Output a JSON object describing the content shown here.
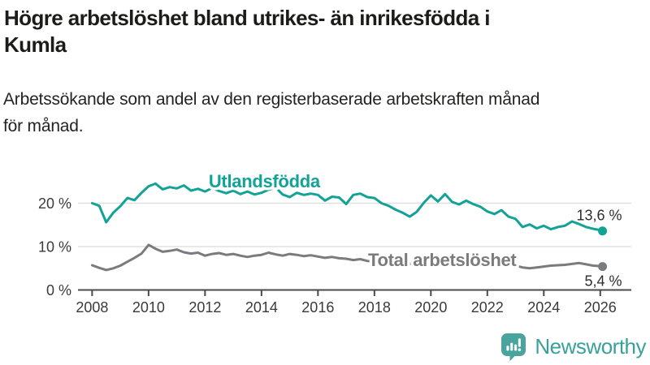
{
  "header": {
    "title_lines": [
      "Högre arbetslöshet bland utrikes- än inrikesfödda i",
      "Kumla"
    ],
    "subtitle_lines": [
      "Arbetssökande som andel av den registerbaserade arbetskraften månad",
      "för månad."
    ]
  },
  "chart_data": {
    "type": "line",
    "x_unit": "year (monthly share of registered labour force, sampled quarterly)",
    "x": [
      2008,
      2008.25,
      2008.5,
      2008.75,
      2009,
      2009.25,
      2009.5,
      2009.75,
      2010,
      2010.25,
      2010.5,
      2010.75,
      2011,
      2011.25,
      2011.5,
      2011.75,
      2012,
      2012.25,
      2012.5,
      2012.75,
      2013,
      2013.25,
      2013.5,
      2013.75,
      2014,
      2014.25,
      2014.5,
      2014.75,
      2015,
      2015.25,
      2015.5,
      2015.75,
      2016,
      2016.25,
      2016.5,
      2016.75,
      2017,
      2017.25,
      2017.5,
      2017.75,
      2018,
      2018.25,
      2018.5,
      2018.75,
      2019,
      2019.25,
      2019.5,
      2019.75,
      2020,
      2020.25,
      2020.5,
      2020.75,
      2021,
      2021.25,
      2021.5,
      2021.75,
      2022,
      2022.25,
      2022.5,
      2022.75,
      2023,
      2023.25,
      2023.5,
      2023.75,
      2024,
      2024.25,
      2024.5,
      2024.75,
      2025,
      2025.25,
      2025.5,
      2025.75,
      2026,
      2026.08
    ],
    "series": [
      {
        "name": "Utlandsfödda",
        "color": "#12a296",
        "end_label": "13,6 %",
        "end_value": 13.6,
        "label_at": {
          "x": 2014.1,
          "y": 23.6
        },
        "values": [
          20.0,
          19.4,
          15.6,
          17.8,
          19.3,
          21.2,
          20.7,
          22.4,
          23.9,
          24.5,
          23.2,
          23.7,
          23.4,
          24.1,
          22.9,
          23.3,
          22.7,
          23.5,
          22.8,
          22.3,
          22.9,
          22.1,
          22.7,
          22.0,
          22.4,
          23.1,
          23.6,
          22.0,
          21.4,
          22.4,
          21.9,
          22.2,
          21.9,
          20.6,
          21.5,
          21.3,
          19.8,
          21.9,
          22.2,
          21.4,
          21.2,
          20.0,
          19.4,
          18.5,
          17.8,
          16.9,
          18.0,
          20.1,
          21.8,
          20.4,
          22.1,
          20.3,
          19.7,
          20.6,
          19.8,
          19.2,
          18.1,
          17.5,
          18.4,
          16.9,
          16.4,
          14.5,
          15.1,
          14.2,
          14.8,
          14.0,
          14.5,
          14.8,
          15.8,
          15.2,
          14.5,
          14.1,
          13.8,
          13.6
        ]
      },
      {
        "name": "Total arbetslöshet",
        "color": "#7a7b7e",
        "end_label": "5,4 %",
        "end_value": 5.4,
        "label_at": {
          "x": 2020.4,
          "y": 5.5
        },
        "values": [
          5.7,
          5.1,
          4.6,
          5.0,
          5.6,
          6.5,
          7.4,
          8.4,
          10.4,
          9.5,
          8.8,
          9.0,
          9.3,
          8.7,
          8.4,
          8.6,
          7.9,
          8.3,
          8.5,
          8.1,
          8.3,
          7.9,
          7.6,
          7.9,
          8.1,
          8.6,
          8.2,
          7.9,
          8.3,
          8.1,
          7.8,
          8.0,
          7.7,
          7.4,
          7.6,
          7.3,
          7.2,
          6.9,
          7.1,
          6.7,
          6.6,
          6.4,
          6.6,
          6.3,
          6.2,
          6.0,
          6.3,
          6.5,
          6.6,
          7.2,
          7.4,
          7.0,
          6.8,
          6.6,
          6.3,
          6.1,
          6.0,
          5.8,
          5.9,
          5.7,
          5.6,
          5.2,
          5.0,
          5.2,
          5.4,
          5.6,
          5.7,
          5.8,
          6.0,
          6.2,
          5.9,
          5.6,
          5.5,
          5.4
        ]
      }
    ],
    "x_ticks": [
      "2008",
      "2010",
      "2012",
      "2014",
      "2016",
      "2018",
      "2020",
      "2022",
      "2024",
      "2026"
    ],
    "x_tick_values": [
      2008,
      2010,
      2012,
      2014,
      2016,
      2018,
      2020,
      2022,
      2024,
      2026
    ],
    "y_ticks": [
      {
        "value": 0,
        "label": "0 %"
      },
      {
        "value": 10,
        "label": "10 %"
      },
      {
        "value": 20,
        "label": "20 %"
      }
    ],
    "x_range": [
      2007.5,
      2027.1
    ],
    "y_range": [
      0,
      27.5
    ],
    "grid": "horizontal",
    "legend_position": "inline-labels",
    "colors": {
      "gridline": "#dcdcdc",
      "axis": "#4a4a4a",
      "tick_label": "#3a3a3a",
      "annotation": "#2d2d2d"
    }
  },
  "branding": {
    "wordmark": "Newsworthy",
    "icon": "speech-bubble-bar-chart-icon",
    "icon_color": "#48a49c",
    "wordmark_color": "#38a198"
  }
}
